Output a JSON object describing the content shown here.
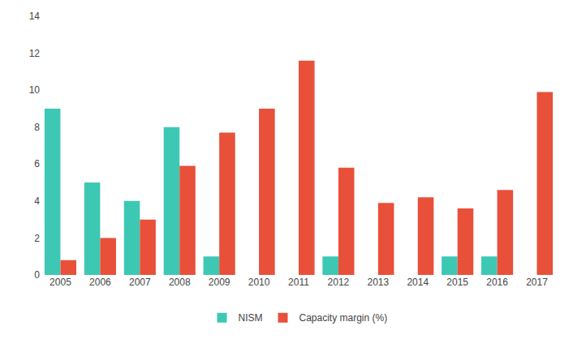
{
  "chart_data": {
    "type": "bar",
    "categories": [
      "2005",
      "2006",
      "2007",
      "2008",
      "2009",
      "2010",
      "2011",
      "2012",
      "2013",
      "2014",
      "2015",
      "2016",
      "2017"
    ],
    "series": [
      {
        "name": "NISM",
        "color": "#3dc8b4",
        "values": [
          9,
          5,
          4,
          8,
          1,
          0,
          0,
          1,
          0,
          0,
          1,
          1,
          0
        ]
      },
      {
        "name": "Capacity margin (%)",
        "color": "#e8503a",
        "values": [
          0.8,
          2.0,
          3.0,
          5.9,
          7.7,
          9.0,
          11.6,
          5.8,
          3.9,
          4.2,
          3.6,
          4.6,
          9.9
        ]
      }
    ],
    "ylim": [
      0,
      14
    ],
    "yticks": [
      0,
      2,
      4,
      6,
      8,
      10,
      12,
      14
    ],
    "grid": false,
    "legend": "bottom"
  }
}
